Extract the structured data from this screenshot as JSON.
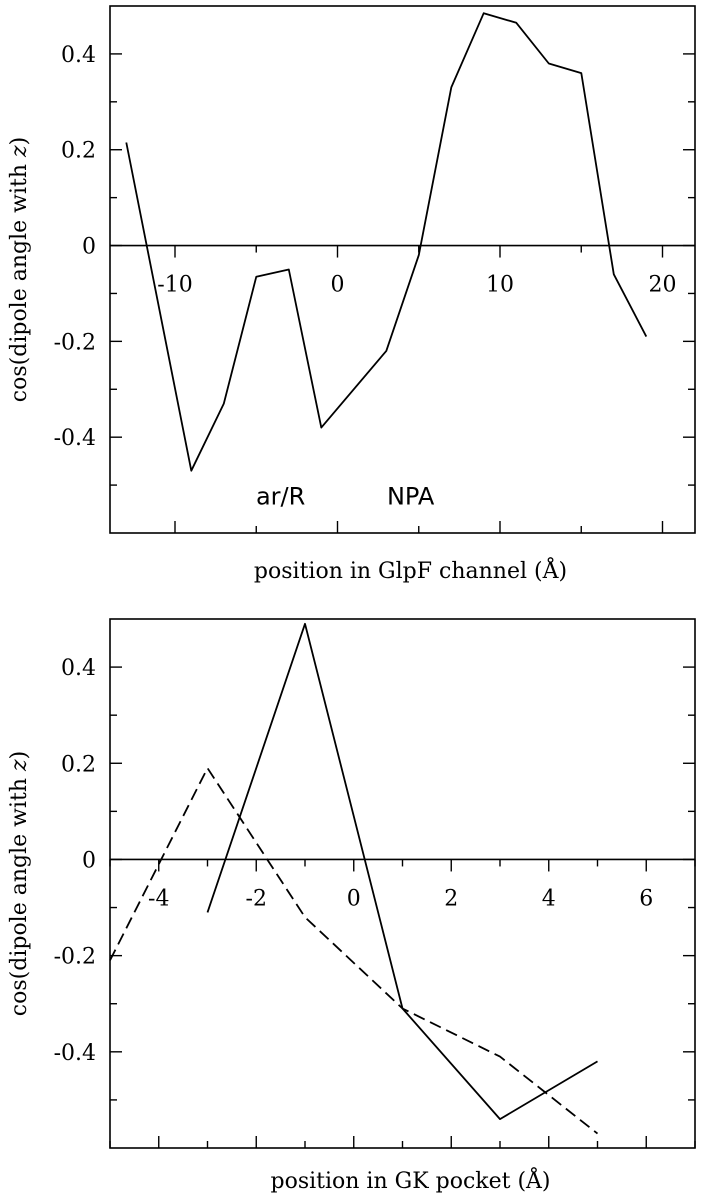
{
  "chart_data": [
    {
      "type": "line",
      "xlabel": "position in GlpF channel (Å)",
      "ylabel_prefix": "cos(dipole angle with ",
      "ylabel_var": "z",
      "ylabel_suffix": ")",
      "xlim": [
        -14,
        22
      ],
      "ylim": [
        -0.6,
        0.5
      ],
      "x_ticks": [
        -10,
        0,
        10,
        20
      ],
      "x_tick_labels": [
        "-10",
        "0",
        "10",
        "20"
      ],
      "y_ticks": [
        -0.4,
        -0.2,
        0,
        0.2,
        0.4
      ],
      "y_tick_labels": [
        "-0.4",
        "-0.2",
        "0",
        "0.2",
        "0.4"
      ],
      "grid": false,
      "annotations": [
        {
          "text": "ar/R",
          "x": -3.5,
          "y": -0.54
        },
        {
          "text": "NPA",
          "x": 4.5,
          "y": -0.54
        }
      ],
      "series": [
        {
          "style": "solid",
          "x": [
            -13,
            -9,
            -7,
            -5,
            -3,
            -1,
            3,
            5,
            7,
            9,
            11,
            13,
            15,
            17,
            19
          ],
          "y": [
            0.215,
            -0.47,
            -0.33,
            -0.065,
            -0.05,
            -0.38,
            -0.22,
            -0.02,
            0.33,
            0.485,
            0.465,
            0.38,
            0.36,
            -0.06,
            -0.19
          ]
        }
      ]
    },
    {
      "type": "line",
      "xlabel": "position in GK pocket (Å)",
      "ylabel_prefix": "cos(dipole angle with ",
      "ylabel_var": "z",
      "ylabel_suffix": ")",
      "xlim": [
        -5,
        7
      ],
      "ylim": [
        -0.6,
        0.5
      ],
      "x_ticks": [
        -4,
        -2,
        0,
        2,
        4,
        6
      ],
      "x_tick_labels": [
        "-4",
        "-2",
        "0",
        "2",
        "4",
        "6"
      ],
      "y_ticks": [
        -0.4,
        -0.2,
        0,
        0.2,
        0.4
      ],
      "y_tick_labels": [
        "-0.4",
        "-0.2",
        "0",
        "0.2",
        "0.4"
      ],
      "grid": false,
      "series": [
        {
          "style": "solid",
          "x": [
            -3,
            -1,
            1,
            3,
            5
          ],
          "y": [
            -0.11,
            0.49,
            -0.31,
            -0.54,
            -0.42
          ]
        },
        {
          "style": "dashed",
          "x": [
            -5,
            -3,
            -1,
            1,
            3,
            5
          ],
          "y": [
            -0.21,
            0.19,
            -0.12,
            -0.31,
            -0.41,
            -0.57
          ]
        }
      ]
    }
  ]
}
